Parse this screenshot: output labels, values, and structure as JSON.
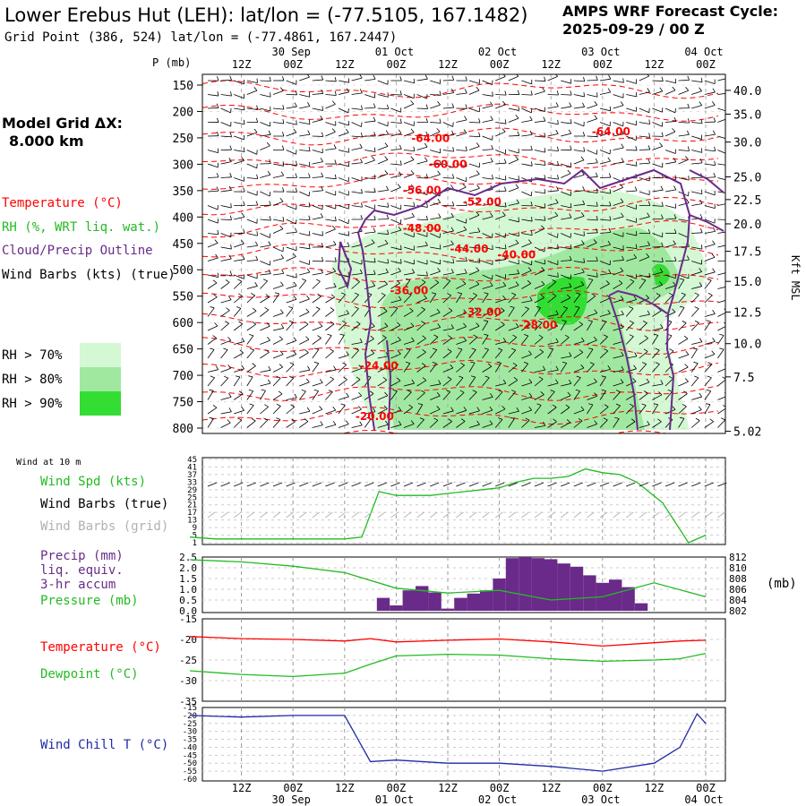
{
  "header": {
    "title": "Lower Erebus Hut (LEH):  lat/lon = (-77.5105, 167.1482)",
    "subtitle": "Grid Point (386, 524) lat/lon = (-77.4861, 167.2447)",
    "cycle_line1": "AMPS WRF Forecast Cycle:",
    "cycle_line2": "2025-09-29 / 00  Z"
  },
  "time_axis": {
    "times": [
      "12Z",
      "00Z",
      "12Z",
      "00Z",
      "12Z",
      "00Z",
      "12Z",
      "00Z",
      "12Z",
      "00Z"
    ],
    "dates": [
      "30 Sep",
      "01 Oct",
      "02 Oct",
      "03 Oct",
      "04 Oct"
    ]
  },
  "left_panel": {
    "model_grid_line1": "Model Grid ΔX:",
    "model_grid_line2": "8.000 km",
    "legend": {
      "temperature": "Temperature (°C)",
      "rh": "RH (%, WRT liq. wat.)",
      "cloud": "Cloud/Precip Outline",
      "wind": "Wind Barbs (kts) (true)"
    },
    "rh_keys": [
      "RH > 70%",
      "RH > 80%",
      "RH > 90%"
    ]
  },
  "colors": {
    "temperature": "#ff0000",
    "rh70": "#d3f8d3",
    "rh80": "#a0e8a0",
    "rh90": "#33dd33",
    "cloud": "#6a2a8a",
    "wind_speed": "#22bb22",
    "precip": "#6a2a8a",
    "pressure": "#22bb22",
    "dewpoint": "#22bb22",
    "windchill": "#1e2aa8",
    "grid_barbs": "#b0b0b0"
  },
  "chart_data": [
    {
      "type": "contour",
      "title": "Vertical cross-section",
      "ylabel": "P (mb)",
      "y2label": "Kft MSL",
      "pressure_levels": [
        150,
        200,
        250,
        300,
        350,
        400,
        450,
        500,
        550,
        600,
        650,
        700,
        750,
        800
      ],
      "height_ticks": [
        "40.0",
        "35.0",
        "30.0",
        "25.0",
        "22.5",
        "20.0",
        "17.5",
        "15.0",
        "12.5",
        "10.0",
        "7.5",
        "5.02"
      ],
      "height_tick_pressures": [
        160,
        205,
        258,
        324,
        367,
        413,
        465,
        522,
        580,
        640,
        703,
        806
      ],
      "temperature_labels": [
        {
          "label": "-64.00",
          "hour": 56,
          "p": 258
        },
        {
          "label": "-64.00",
          "hour": 98,
          "p": 245
        },
        {
          "label": "-60.00",
          "hour": 60,
          "p": 307
        },
        {
          "label": "-56.00",
          "hour": 54,
          "p": 356
        },
        {
          "label": "-52.00",
          "hour": 68,
          "p": 378
        },
        {
          "label": "-48.00",
          "hour": 54,
          "p": 428
        },
        {
          "label": "-44.00",
          "hour": 65,
          "p": 467
        },
        {
          "label": "-40.00",
          "hour": 76,
          "p": 478
        },
        {
          "label": "-36.00",
          "hour": 51,
          "p": 546
        },
        {
          "label": "-32.00",
          "hour": 68,
          "p": 587
        },
        {
          "label": "-28.00",
          "hour": 81,
          "p": 612
        },
        {
          "label": "-24.00",
          "hour": 44,
          "p": 689
        },
        {
          "label": "-20.00",
          "hour": 43,
          "p": 785
        }
      ]
    },
    {
      "type": "line",
      "title": "Wind at 10 m",
      "series": [
        {
          "name": "Wind Spd (kts)",
          "values": [
            4,
            3,
            3,
            3,
            3,
            3,
            3,
            4,
            28,
            26,
            26,
            26,
            27,
            28,
            29,
            30,
            33,
            35,
            35,
            36,
            40,
            38,
            37,
            33,
            22,
            1,
            5
          ]
        }
      ],
      "x_hours": [
        0,
        6,
        12,
        18,
        24,
        30,
        36,
        40,
        44,
        48,
        52,
        56,
        60,
        64,
        68,
        72,
        76,
        80,
        84,
        88,
        92,
        96,
        100,
        104,
        110,
        116,
        120
      ],
      "yticks": [
        "45",
        "41",
        "37",
        "33",
        "29",
        "25",
        "21",
        "17",
        "13",
        "9",
        "5",
        "1"
      ],
      "legend": {
        "speed": "Wind Spd (kts)",
        "barbs_true": "Wind Barbs (true)",
        "barbs_grid": "Wind Barbs (grid)"
      }
    },
    {
      "type": "bar",
      "title": "Precipitation and pressure",
      "x_hours": [
        45,
        48,
        51,
        54,
        57,
        60,
        63,
        66,
        69,
        72,
        75,
        78,
        81,
        84,
        87,
        90,
        93,
        96,
        99,
        102,
        105
      ],
      "series": [
        {
          "name": "Precip (mm)",
          "values": [
            0.6,
            0.25,
            0.95,
            1.15,
            0.85,
            0.1,
            0.6,
            0.8,
            0.95,
            1.5,
            2.45,
            2.5,
            2.45,
            2.4,
            2.2,
            2.05,
            1.65,
            1.3,
            1.45,
            1.1,
            0.35
          ]
        },
        {
          "name": "Pressure (mb)",
          "x_hours": [
            0,
            12,
            24,
            36,
            48,
            60,
            72,
            84,
            96,
            108,
            120
          ],
          "values": [
            811.5,
            811.1,
            810.3,
            809.1,
            806.2,
            805.3,
            805.8,
            804.0,
            804.6,
            807.2,
            804.6
          ]
        }
      ],
      "yticks_left": [
        "2.5",
        "2.0",
        "1.5",
        "1.0",
        "0.5",
        "0.0"
      ],
      "yticks_right": [
        "812",
        "810",
        "808",
        "806",
        "804",
        "802"
      ],
      "legend": {
        "precip": "Precip (mm)",
        "liq": "liq. equiv.",
        "accum": "3-hr accum",
        "pressure": "Pressure (mb)"
      },
      "right_unit": "(mb)"
    },
    {
      "type": "line",
      "title": "Temperature and dewpoint",
      "x_hours": [
        0,
        12,
        24,
        36,
        42,
        48,
        60,
        72,
        84,
        96,
        108,
        114,
        120
      ],
      "series": [
        {
          "name": "Temperature (°C)",
          "values": [
            -19.3,
            -19.8,
            -20.0,
            -20.4,
            -19.8,
            -20.6,
            -20.2,
            -19.9,
            -20.6,
            -21.6,
            -20.8,
            -20.4,
            -20.2
          ]
        },
        {
          "name": "Dewpoint (°C)",
          "values": [
            -27.6,
            -28.5,
            -29.0,
            -28.2,
            -26.0,
            -24.0,
            -23.6,
            -23.8,
            -24.7,
            -25.3,
            -25.0,
            -24.7,
            -23.4
          ]
        }
      ],
      "yticks": [
        "-15",
        "-20",
        "-25",
        "-30",
        "-35"
      ],
      "legend": {
        "temperature": "Temperature (°C)",
        "dewpoint": "Dewpoint (°C)"
      }
    },
    {
      "type": "line",
      "title": "Wind chill",
      "x_hours": [
        0,
        12,
        24,
        36,
        42,
        48,
        60,
        72,
        84,
        96,
        108,
        114,
        118,
        120
      ],
      "series": [
        {
          "name": "Wind Chill T (°C)",
          "values": [
            -20,
            -21,
            -20,
            -20,
            -49,
            -48,
            -50,
            -50,
            -52,
            -55,
            -50,
            -40,
            -19,
            -25
          ]
        }
      ],
      "yticks": [
        "-15",
        "-20",
        "-25",
        "-30",
        "-35",
        "-40",
        "-45",
        "-50",
        "-55",
        "-60"
      ],
      "legend": {
        "windchill": "Wind Chill T (°C)"
      }
    }
  ]
}
